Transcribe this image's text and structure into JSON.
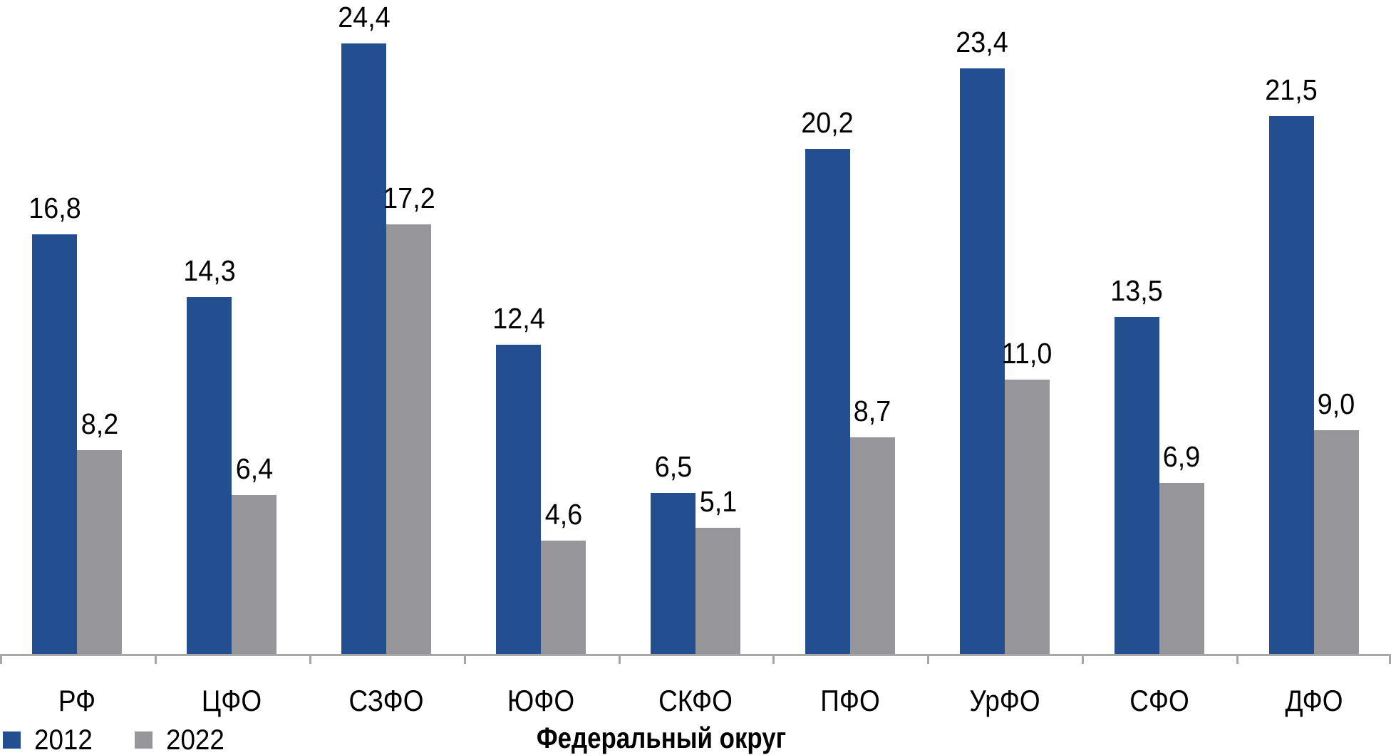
{
  "chart_data": {
    "type": "bar",
    "title": "",
    "categories": [
      "РФ",
      "ЦФО",
      "СЗФО",
      "ЮФО",
      "СКФО",
      "ПФО",
      "УрФО",
      "СФО",
      "ДФО"
    ],
    "series": [
      {
        "name": "2012",
        "color": "#234E90",
        "values": [
          16.8,
          14.3,
          24.4,
          12.4,
          6.5,
          20.2,
          23.4,
          13.5,
          21.5
        ]
      },
      {
        "name": "2022",
        "color": "#96969A",
        "values": [
          8.2,
          6.4,
          17.2,
          4.6,
          5.1,
          8.7,
          11.0,
          6.9,
          9.0
        ]
      }
    ],
    "value_labels": {
      "2012": [
        "16,8",
        "14,3",
        "24,4",
        "12,4",
        "6,5",
        "20,2",
        "23,4",
        "13,5",
        "21,5"
      ],
      "2022": [
        "8,2",
        "6,4",
        "17,2",
        "4,6",
        "5,1",
        "8,7",
        "11,0",
        "6,9",
        "9,0"
      ]
    },
    "xlabel": "Федеральный округ",
    "ylabel": "",
    "ylim": [
      0,
      26.1
    ],
    "grid": false,
    "yaxis_visible": false,
    "legend_position": "bottom-left",
    "axis_color": "#A7A7A7",
    "text_color": "#000000",
    "background": "#FFFFFF"
  }
}
